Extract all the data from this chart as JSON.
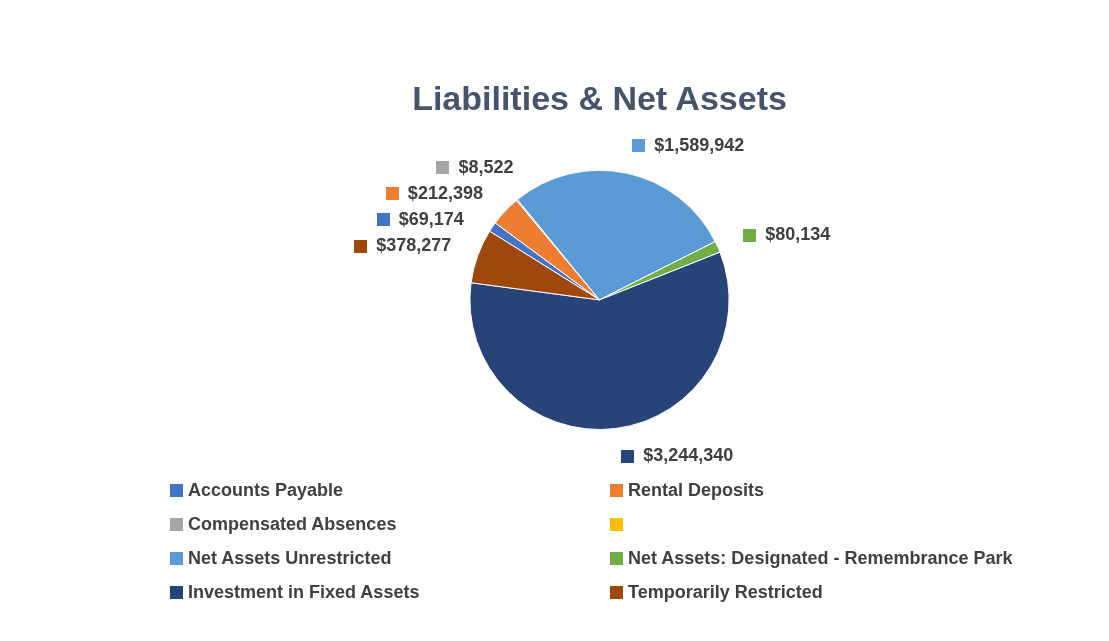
{
  "chart_data": {
    "type": "pie",
    "title": "Liabilities & Net Assets",
    "categories": [
      "Accounts Payable",
      "Rental Deposits",
      "Compensated Absences",
      null,
      "Net Assets Unrestricted",
      "Net Assets: Designated - Remembrance Park",
      "Investment in Fixed Assets",
      "Temporarily Restricted"
    ],
    "values": [
      69174,
      212398,
      8522,
      null,
      1589942,
      80134,
      3244340,
      378277
    ],
    "colors": [
      "#4472c4",
      "#ed7d31",
      "#a5a5a5",
      "#ffc000",
      "#5b9bd5",
      "#70ad47",
      "#264478",
      "#9e480e"
    ],
    "value_labels": [
      "$69,174",
      "$212,398",
      "$8,522",
      null,
      "$1,589,942",
      "$80,134",
      "$3,244,340",
      "$378,277"
    ],
    "legend": "bottom"
  }
}
